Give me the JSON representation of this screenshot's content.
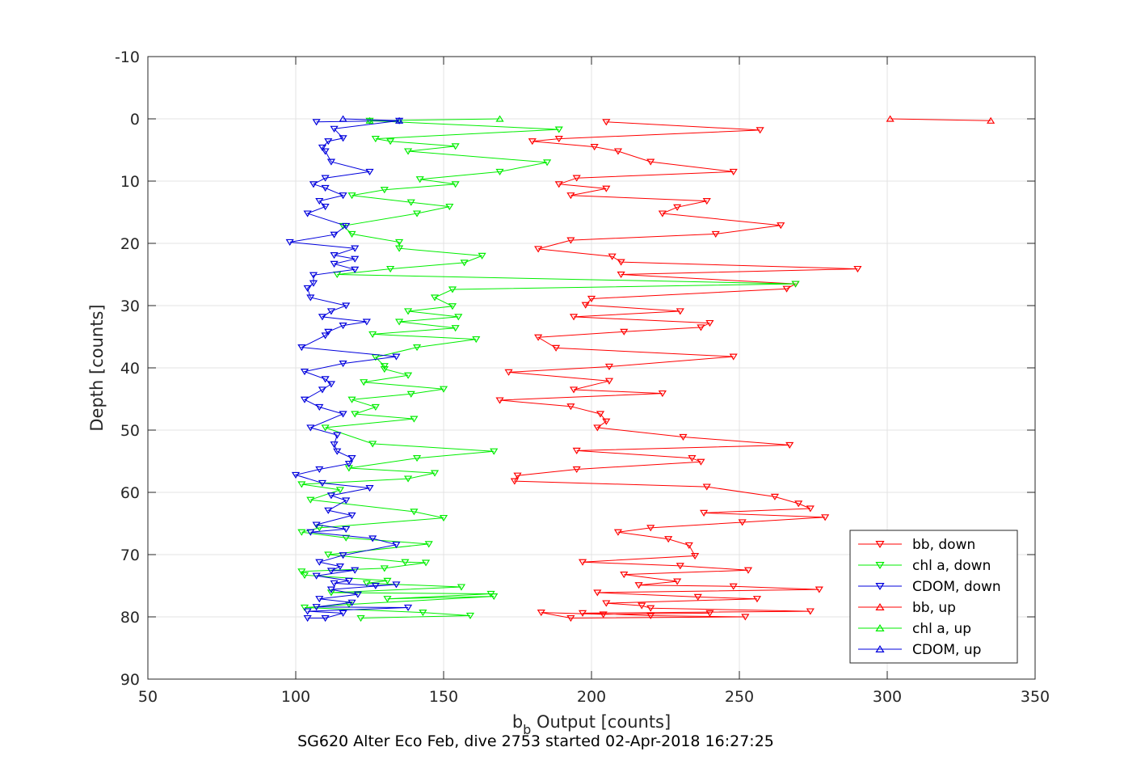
{
  "chart_data": {
    "type": "line",
    "xlabel_main": "b",
    "xlabel_sub": "b",
    "xlabel_rest": " Output [counts]",
    "ylabel": "Depth [counts]",
    "caption": "SG620 Alter Eco Feb, dive 2753 started 02-Apr-2018 16:27:25",
    "xlim": [
      50,
      350
    ],
    "ylim": [
      -10,
      90
    ],
    "y_reversed": true,
    "x_ticks": [
      50,
      100,
      150,
      200,
      250,
      300,
      350
    ],
    "y_ticks": [
      -10,
      0,
      10,
      20,
      30,
      40,
      50,
      60,
      70,
      80,
      90
    ],
    "grid": true,
    "legend_position": "bottom-right",
    "series": [
      {
        "name": "bb, down",
        "color": "#ff0000",
        "marker": "triangle-down",
        "points": [
          [
            205,
            0.5
          ],
          [
            257,
            1.8
          ],
          [
            189,
            3.2
          ],
          [
            180,
            3.6
          ],
          [
            201,
            4.5
          ],
          [
            209,
            5.2
          ],
          [
            220,
            6.9
          ],
          [
            248,
            8.5
          ],
          [
            195,
            9.5
          ],
          [
            189,
            10.5
          ],
          [
            205,
            11.2
          ],
          [
            193,
            12.3
          ],
          [
            239,
            13.2
          ],
          [
            229,
            14.2
          ],
          [
            224,
            15.2
          ],
          [
            264,
            17.1
          ],
          [
            242,
            18.5
          ],
          [
            193,
            19.5
          ],
          [
            182,
            20.9
          ],
          [
            207,
            22.1
          ],
          [
            210,
            23
          ],
          [
            290,
            24.1
          ],
          [
            210,
            25
          ],
          [
            269,
            26.5
          ],
          [
            266,
            27.3
          ],
          [
            200,
            28.9
          ],
          [
            198,
            29.9
          ],
          [
            230,
            30.9
          ],
          [
            194,
            31.8
          ],
          [
            240,
            32.8
          ],
          [
            237,
            33.5
          ],
          [
            211,
            34.2
          ],
          [
            182,
            35.1
          ],
          [
            188,
            36.8
          ],
          [
            248,
            38.2
          ],
          [
            206,
            39.8
          ],
          [
            172,
            40.7
          ],
          [
            206,
            42.1
          ],
          [
            194,
            43.5
          ],
          [
            224,
            44.1
          ],
          [
            169,
            45.2
          ],
          [
            193,
            46.2
          ],
          [
            203,
            47.4
          ],
          [
            205,
            48.6
          ],
          [
            202,
            49.6
          ],
          [
            231,
            51.1
          ],
          [
            267,
            52.4
          ],
          [
            195,
            53.3
          ],
          [
            234,
            54.5
          ],
          [
            237,
            55.1
          ],
          [
            195,
            56.3
          ],
          [
            175,
            57.3
          ],
          [
            174,
            58.2
          ],
          [
            239,
            59.1
          ],
          [
            262,
            60.7
          ],
          [
            270,
            61.8
          ],
          [
            274,
            62.6
          ],
          [
            238,
            63.3
          ],
          [
            279,
            64
          ],
          [
            251,
            64.8
          ],
          [
            220,
            65.7
          ],
          [
            209,
            66.4
          ],
          [
            226,
            67.5
          ],
          [
            233,
            68.5
          ],
          [
            235,
            70.2
          ],
          [
            197,
            71.2
          ],
          [
            230,
            71.8
          ],
          [
            253,
            72.5
          ],
          [
            211,
            73.2
          ],
          [
            229,
            74.3
          ],
          [
            216,
            74.9
          ],
          [
            248,
            75.1
          ],
          [
            277,
            75.6
          ],
          [
            202,
            76.1
          ],
          [
            236,
            76.8
          ],
          [
            256,
            77.1
          ],
          [
            205,
            77.8
          ],
          [
            217,
            78.2
          ],
          [
            220,
            78.6
          ],
          [
            274,
            79.1
          ],
          [
            197,
            79.4
          ],
          [
            220,
            79.8
          ],
          [
            252,
            80
          ],
          [
            193,
            80.2
          ],
          [
            183,
            79.3
          ],
          [
            204,
            79.6
          ],
          [
            240,
            79.4
          ]
        ]
      },
      {
        "name": "chl a, down",
        "color": "#00ee00",
        "marker": "triangle-down",
        "points": [
          [
            125,
            0.3
          ],
          [
            189,
            1.7
          ],
          [
            127,
            3.2
          ],
          [
            132,
            3.6
          ],
          [
            154,
            4.4
          ],
          [
            138,
            5.2
          ],
          [
            185,
            7
          ],
          [
            169,
            8.5
          ],
          [
            142,
            9.7
          ],
          [
            154,
            10.5
          ],
          [
            130,
            11.4
          ],
          [
            119,
            12.3
          ],
          [
            139,
            13.4
          ],
          [
            152,
            14.1
          ],
          [
            141,
            15.2
          ],
          [
            116,
            17.2
          ],
          [
            119,
            18.5
          ],
          [
            135,
            19.8
          ],
          [
            135,
            20.8
          ],
          [
            163,
            22
          ],
          [
            157,
            23.1
          ],
          [
            132,
            24.1
          ],
          [
            114,
            25
          ],
          [
            269,
            26.5
          ],
          [
            153,
            27.4
          ],
          [
            147,
            28.7
          ],
          [
            153,
            30.1
          ],
          [
            138,
            30.9
          ],
          [
            155,
            31.8
          ],
          [
            135,
            32.6
          ],
          [
            154,
            33.6
          ],
          [
            126,
            34.6
          ],
          [
            161,
            35.4
          ],
          [
            141,
            36.7
          ],
          [
            127,
            38.3
          ],
          [
            130,
            39.7
          ],
          [
            130,
            40.2
          ],
          [
            138,
            41.2
          ],
          [
            123,
            42.3
          ],
          [
            150,
            43.4
          ],
          [
            139,
            44.2
          ],
          [
            119,
            45.1
          ],
          [
            127,
            46.3
          ],
          [
            120,
            47.4
          ],
          [
            140,
            48.2
          ],
          [
            110,
            49.6
          ],
          [
            126,
            52.2
          ],
          [
            167,
            53.4
          ],
          [
            141,
            54.5
          ],
          [
            118,
            56.1
          ],
          [
            147,
            56.9
          ],
          [
            138,
            57.8
          ],
          [
            102,
            58.7
          ],
          [
            115,
            59.6
          ],
          [
            105,
            61.2
          ],
          [
            140,
            63.1
          ],
          [
            150,
            64.1
          ],
          [
            108,
            65.7
          ],
          [
            102,
            66.4
          ],
          [
            117,
            67.3
          ],
          [
            145,
            68.3
          ],
          [
            111,
            70
          ],
          [
            137,
            71.2
          ],
          [
            144,
            71.3
          ],
          [
            130,
            72.2
          ],
          [
            102,
            72.7
          ],
          [
            103,
            73.3
          ],
          [
            131,
            74.2
          ],
          [
            124,
            74.6
          ],
          [
            156,
            75.2
          ],
          [
            112,
            76.1
          ],
          [
            166,
            76.3
          ],
          [
            131,
            77.1
          ],
          [
            167,
            76.7
          ],
          [
            118,
            78
          ],
          [
            103,
            78.5
          ],
          [
            143,
            79.3
          ],
          [
            159,
            79.8
          ],
          [
            122,
            80.2
          ]
        ]
      },
      {
        "name": "CDOM, down",
        "color": "#0000dd",
        "marker": "triangle-down",
        "points": [
          [
            107,
            0.5
          ],
          [
            135,
            0.3
          ],
          [
            113,
            1.6
          ],
          [
            116,
            3.1
          ],
          [
            111,
            3.6
          ],
          [
            109,
            4.6
          ],
          [
            110,
            5.2
          ],
          [
            112,
            6.9
          ],
          [
            125,
            8.5
          ],
          [
            110,
            9.5
          ],
          [
            106,
            10.5
          ],
          [
            110,
            11.1
          ],
          [
            116,
            12.3
          ],
          [
            108,
            13.2
          ],
          [
            110,
            14.1
          ],
          [
            104,
            15.2
          ],
          [
            117,
            17.2
          ],
          [
            113,
            18.6
          ],
          [
            98,
            19.8
          ],
          [
            120,
            20.8
          ],
          [
            113,
            21.9
          ],
          [
            120,
            22.5
          ],
          [
            113,
            23.3
          ],
          [
            120,
            24.2
          ],
          [
            106,
            25.1
          ],
          [
            106,
            26.4
          ],
          [
            104,
            27.2
          ],
          [
            105,
            28.7
          ],
          [
            117,
            30
          ],
          [
            112,
            30.9
          ],
          [
            109,
            31.8
          ],
          [
            124,
            32.6
          ],
          [
            116,
            33.2
          ],
          [
            111,
            34.2
          ],
          [
            110,
            34.8
          ],
          [
            102,
            36.7
          ],
          [
            134,
            38.2
          ],
          [
            116,
            39.3
          ],
          [
            103,
            40.6
          ],
          [
            110,
            41.8
          ],
          [
            112,
            42.6
          ],
          [
            109,
            43.5
          ],
          [
            103,
            45.1
          ],
          [
            108,
            46.3
          ],
          [
            116,
            47.4
          ],
          [
            105,
            49.6
          ],
          [
            114,
            50.8
          ],
          [
            113,
            52.3
          ],
          [
            114,
            53.4
          ],
          [
            119,
            54.5
          ],
          [
            118,
            55.4
          ],
          [
            108,
            56.3
          ],
          [
            100,
            57.2
          ],
          [
            109,
            58.5
          ],
          [
            125,
            59.3
          ],
          [
            112,
            60.5
          ],
          [
            117,
            61.3
          ],
          [
            111,
            62.9
          ],
          [
            119,
            63.7
          ],
          [
            107,
            65.2
          ],
          [
            117,
            65.9
          ],
          [
            105,
            66.4
          ],
          [
            126,
            67.4
          ],
          [
            134,
            68.4
          ],
          [
            116,
            70.1
          ],
          [
            108,
            71.2
          ],
          [
            115,
            71.9
          ],
          [
            112,
            72.6
          ],
          [
            120,
            72.5
          ],
          [
            107,
            73.4
          ],
          [
            118,
            74.2
          ],
          [
            113,
            74.6
          ],
          [
            127,
            75
          ],
          [
            134,
            74.8
          ],
          [
            112,
            75.6
          ],
          [
            121,
            76.4
          ],
          [
            108,
            77.1
          ],
          [
            119,
            77.7
          ],
          [
            107,
            78.4
          ],
          [
            138,
            78.5
          ],
          [
            104,
            79.1
          ],
          [
            116,
            79.4
          ],
          [
            110,
            80.2
          ],
          [
            104,
            80.2
          ]
        ]
      },
      {
        "name": "bb, up",
        "color": "#ff0000",
        "marker": "triangle-up",
        "points": [
          [
            301,
            0
          ],
          [
            335,
            0.3
          ]
        ]
      },
      {
        "name": "chl a, up",
        "color": "#00ee00",
        "marker": "triangle-up",
        "points": [
          [
            169,
            0
          ],
          [
            125,
            0.3
          ]
        ]
      },
      {
        "name": "CDOM, up",
        "color": "#0000dd",
        "marker": "triangle-up",
        "points": [
          [
            116,
            0
          ],
          [
            135,
            0.3
          ]
        ]
      }
    ]
  }
}
